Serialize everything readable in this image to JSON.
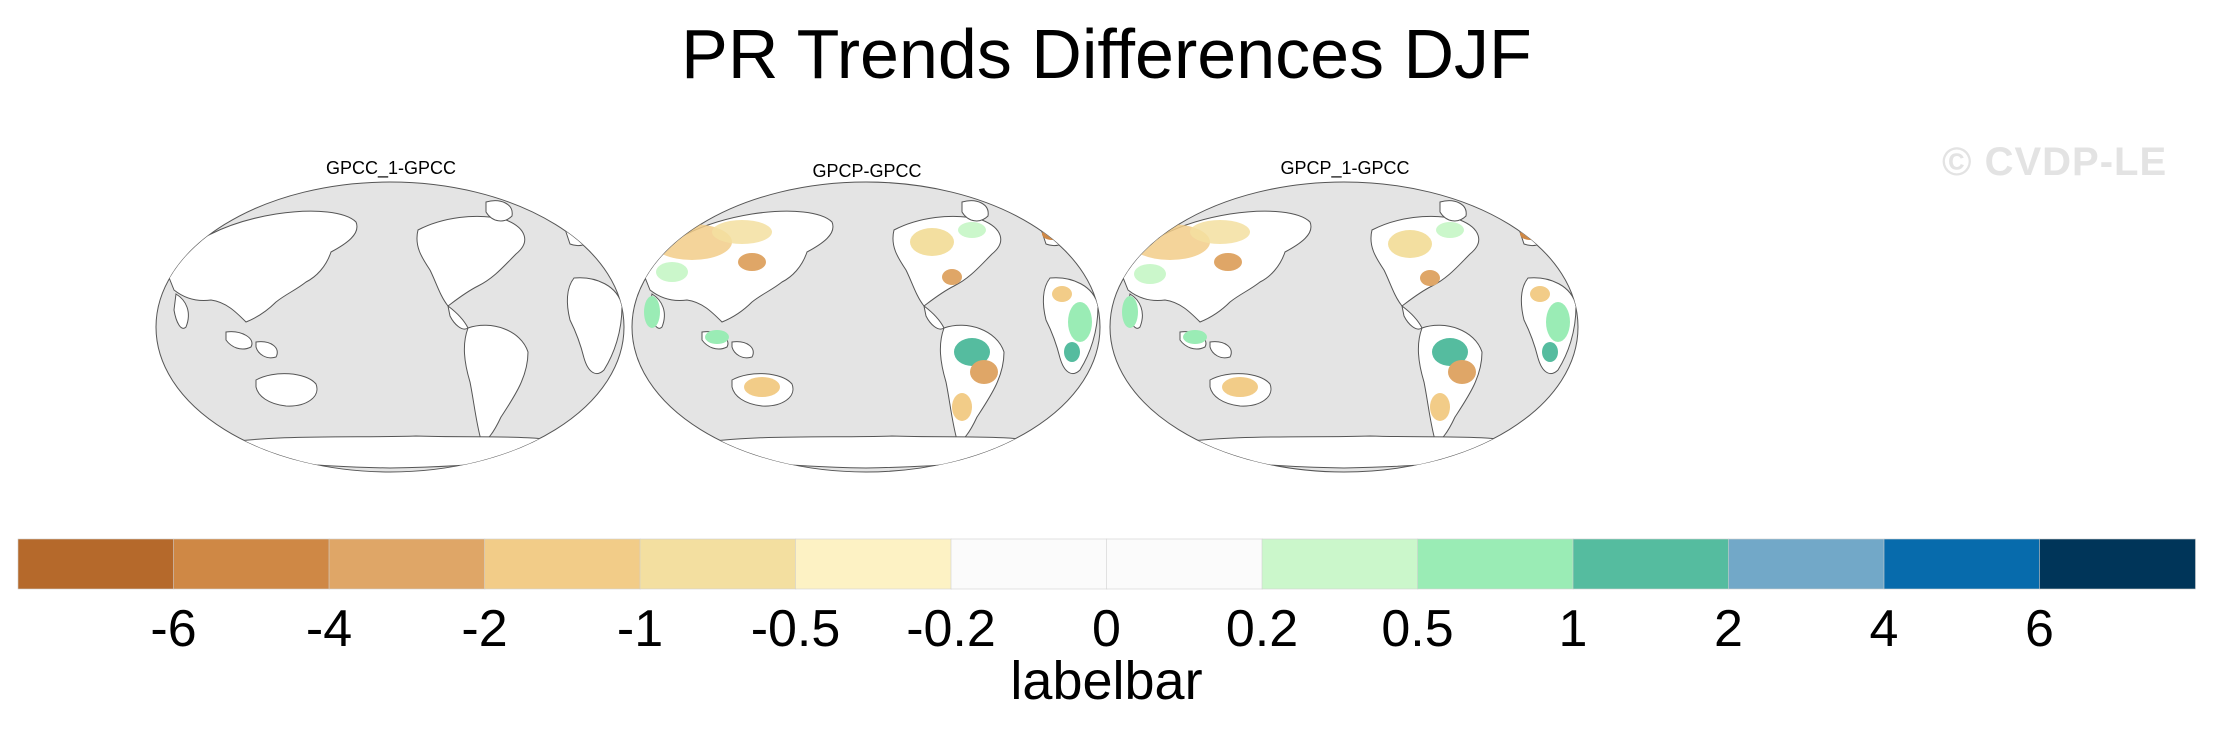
{
  "title": "PR Trends Differences DJF",
  "watermark": "© CVDP-LE",
  "chart_data": {
    "type": "heatmap",
    "title": "PR Trends Differences DJF",
    "panels": [
      {
        "title": "GPCC_1-GPCC",
        "pattern": "land values near zero (white); ocean masked (gray)"
      },
      {
        "title": "GPCP-GPCC",
        "pattern": "mixed positive (green/teal) and negative (tan/orange) land differences; ocean masked"
      },
      {
        "title": "GPCP_1-GPCC",
        "pattern": "mixed positive and negative land differences similar to GPCP-GPCC; ocean masked"
      }
    ],
    "colorbar": {
      "label": "labelbar",
      "levels": [
        "-6",
        "-4",
        "-2",
        "-1",
        "-0.5",
        "-0.2",
        "0",
        "0.2",
        "0.5",
        "1",
        "2",
        "4",
        "6"
      ],
      "colors": [
        "#b5692b",
        "#cf8845",
        "#dfa667",
        "#f2cc88",
        "#f3dfa0",
        "#fdf2c4",
        "#fbfbfb",
        "#fbfbfb",
        "#cbf7cb",
        "#9aecb5",
        "#55bc9f",
        "#72a8c8",
        "#076bac",
        "#003559"
      ]
    }
  },
  "colors": {
    "ocean": "#e4e4e4",
    "land": "#ffffff",
    "coast": "#555555"
  }
}
